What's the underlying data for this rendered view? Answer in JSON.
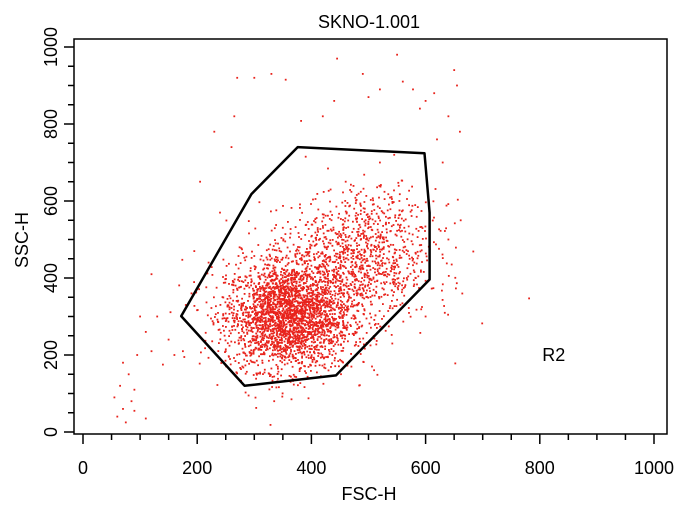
{
  "chart_data": {
    "type": "scatter",
    "title": "SKNO-1.001",
    "xlabel": "FSC-H",
    "ylabel": "SSC-H",
    "xlim": [
      0,
      1000
    ],
    "ylim": [
      0,
      1000
    ],
    "x_ticks": [
      0,
      200,
      400,
      600,
      800,
      1000
    ],
    "y_ticks": [
      0,
      200,
      400,
      600,
      800,
      1000
    ],
    "grid": false,
    "point_color": "#e8231c",
    "gate": {
      "label": "R2",
      "label_position": [
        800,
        200
      ],
      "vertices": [
        [
          283,
          120
        ],
        [
          443,
          147
        ],
        [
          607,
          396
        ],
        [
          607,
          500
        ],
        [
          607,
          570
        ],
        [
          598,
          724
        ],
        [
          376,
          740
        ],
        [
          295,
          618
        ],
        [
          172,
          301
        ]
      ]
    },
    "clusters": [
      {
        "center": [
          360,
          300
        ],
        "spread": [
          55,
          70
        ],
        "count": 2600
      },
      {
        "center": [
          460,
          420
        ],
        "spread": [
          75,
          80
        ],
        "count": 900
      },
      {
        "center": [
          520,
          520
        ],
        "spread": [
          55,
          60
        ],
        "count": 300
      }
    ],
    "scattered_points": [
      [
        60,
        40
      ],
      [
        75,
        25
      ],
      [
        90,
        55
      ],
      [
        110,
        35
      ],
      [
        65,
        120
      ],
      [
        80,
        150
      ],
      [
        70,
        180
      ],
      [
        95,
        200
      ],
      [
        120,
        210
      ],
      [
        140,
        175
      ],
      [
        110,
        260
      ],
      [
        90,
        110
      ],
      [
        55,
        90
      ],
      [
        150,
        240
      ],
      [
        130,
        300
      ],
      [
        100,
        300
      ],
      [
        160,
        200
      ],
      [
        175,
        210
      ],
      [
        70,
        60
      ],
      [
        85,
        80
      ],
      [
        120,
        410
      ],
      [
        195,
        470
      ],
      [
        205,
        650
      ],
      [
        260,
        740
      ],
      [
        300,
        920
      ],
      [
        330,
        930
      ],
      [
        270,
        920
      ],
      [
        355,
        915
      ],
      [
        382,
        808
      ],
      [
        390,
        715
      ],
      [
        420,
        820
      ],
      [
        440,
        860
      ],
      [
        460,
        650
      ],
      [
        490,
        930
      ],
      [
        500,
        870
      ],
      [
        520,
        890
      ],
      [
        550,
        980
      ],
      [
        560,
        910
      ],
      [
        578,
        890
      ],
      [
        590,
        840
      ],
      [
        600,
        860
      ],
      [
        615,
        880
      ],
      [
        620,
        760
      ],
      [
        630,
        700
      ],
      [
        640,
        820
      ],
      [
        650,
        940
      ],
      [
        655,
        900
      ],
      [
        660,
        780
      ],
      [
        475,
        580
      ],
      [
        520,
        700
      ],
      [
        545,
        720
      ],
      [
        445,
        970
      ],
      [
        265,
        820
      ],
      [
        230,
        780
      ],
      [
        240,
        570
      ],
      [
        220,
        440
      ],
      [
        190,
        360
      ],
      [
        180,
        330
      ],
      [
        250,
        210
      ],
      [
        330,
        165
      ],
      [
        430,
        160
      ],
      [
        470,
        170
      ],
      [
        600,
        300
      ],
      [
        640,
        500
      ]
    ]
  }
}
